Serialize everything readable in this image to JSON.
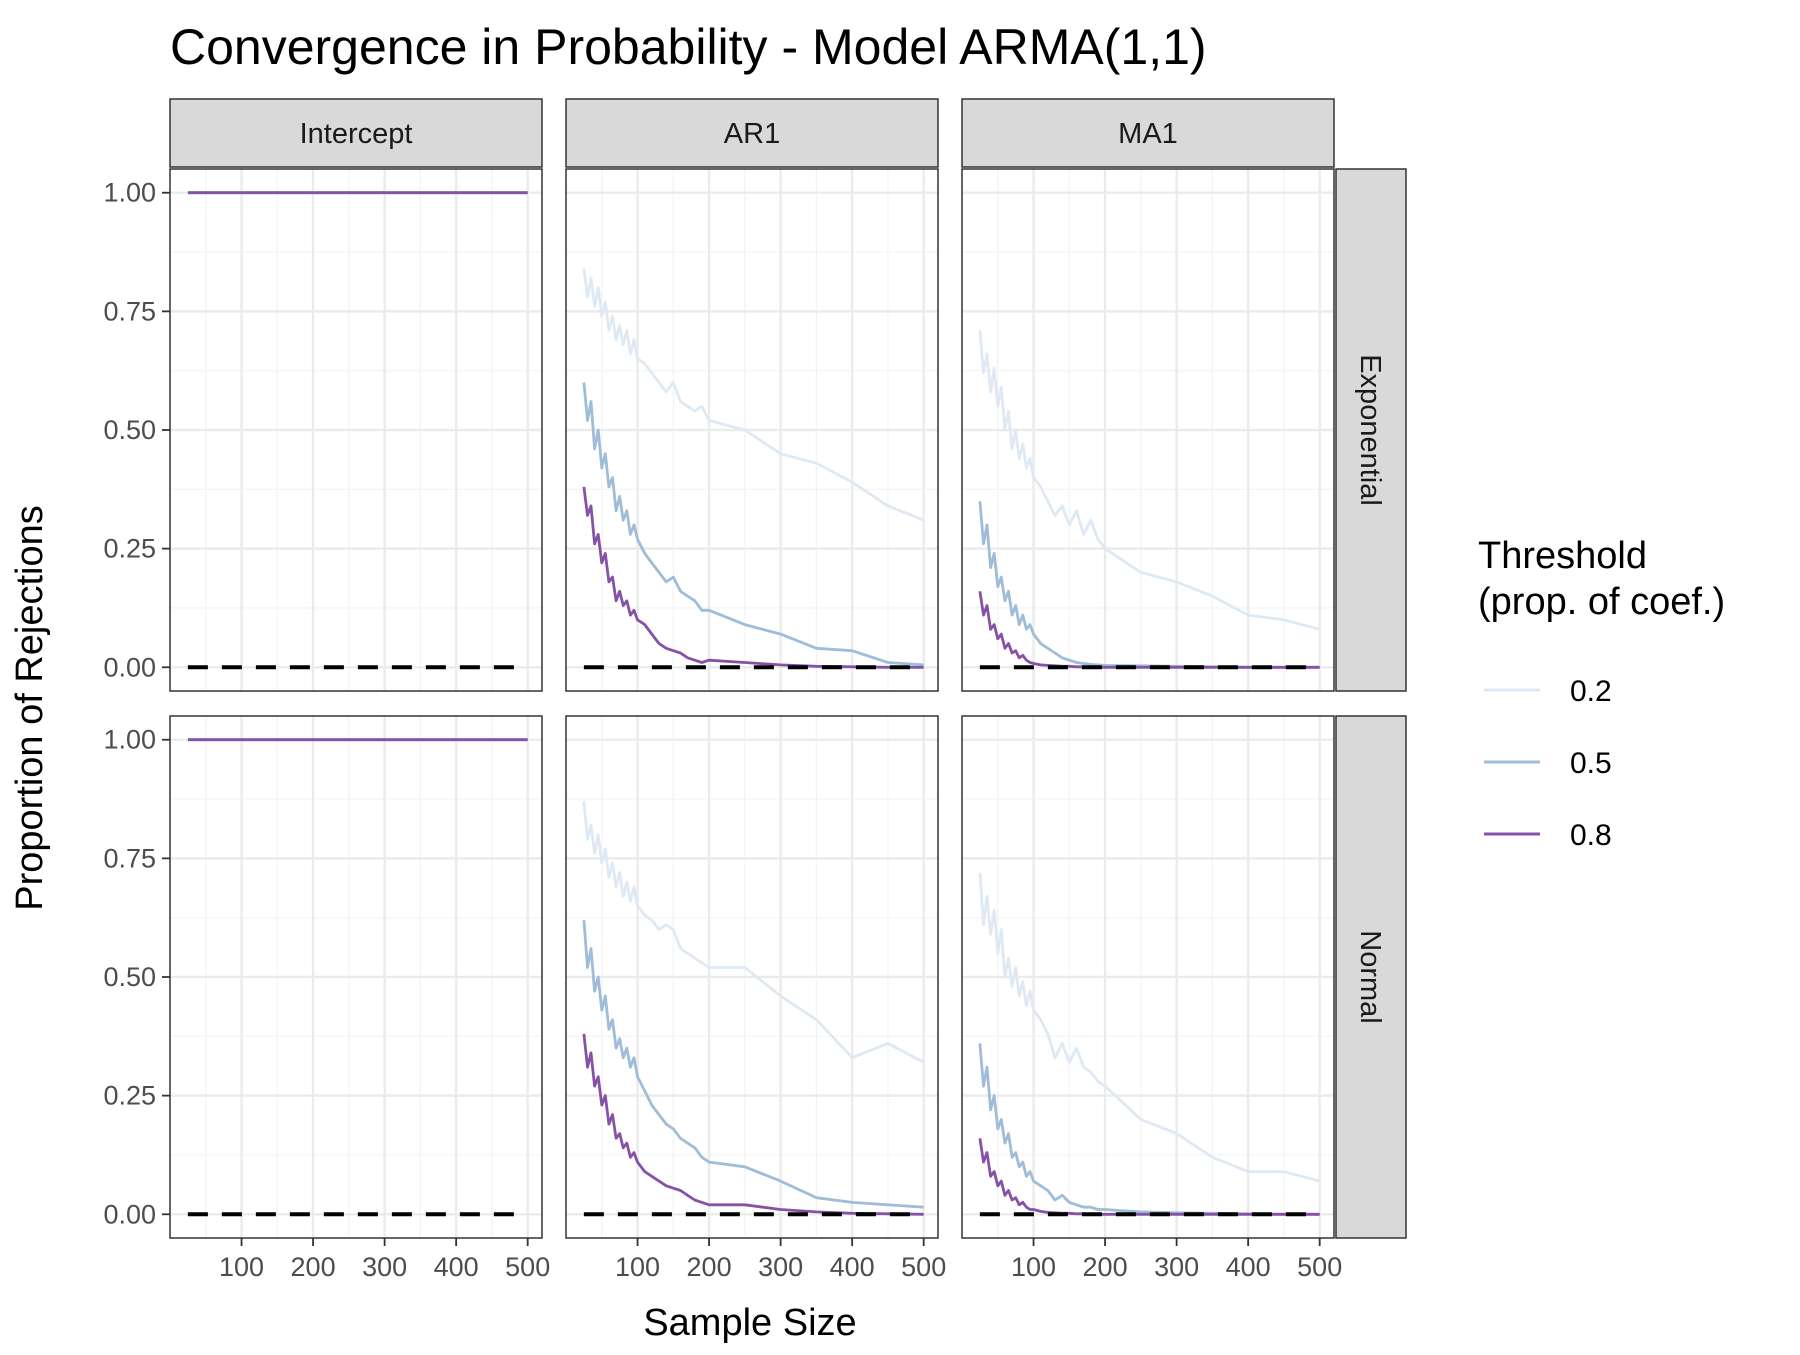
{
  "chart_data": {
    "type": "line",
    "title": "Convergence in Probability - Model ARMA(1,1)",
    "xlabel": "Sample Size",
    "ylabel": "Proportion of Rejections",
    "xlim": [
      0,
      520
    ],
    "ylim": [
      -0.05,
      1.05
    ],
    "x_ticks": [
      100,
      200,
      300,
      400,
      500
    ],
    "x_tick_labels": [
      "100",
      "200",
      "300",
      "400",
      "500"
    ],
    "y_ticks": [
      0,
      0.25,
      0.5,
      0.75,
      1.0
    ],
    "y_tick_labels": [
      "0.00",
      "0.25",
      "0.50",
      "0.75",
      "1.00"
    ],
    "grid": true,
    "reference_line": {
      "y": 0,
      "style": "dashed",
      "color": "#000000"
    },
    "columns": [
      "Intercept",
      "AR1",
      "MA1"
    ],
    "rows": [
      "Exponential",
      "Normal"
    ],
    "legend": {
      "title_lines": [
        "Threshold",
        "(prop. of coef.)"
      ],
      "position": "right",
      "entries": [
        {
          "label": "0.2",
          "color": "#dfe9f4"
        },
        {
          "label": "0.5",
          "color": "#9fbcd9"
        },
        {
          "label": "0.8",
          "color": "#8652a6"
        }
      ]
    },
    "panels": [
      {
        "column": "Intercept",
        "row": "Exponential",
        "series": [
          {
            "threshold": "0.2",
            "x": [
              25,
              500
            ],
            "y": [
              1.0,
              1.0
            ]
          },
          {
            "threshold": "0.5",
            "x": [
              25,
              500
            ],
            "y": [
              1.0,
              1.0
            ]
          },
          {
            "threshold": "0.8",
            "x": [
              25,
              500
            ],
            "y": [
              1.0,
              1.0
            ]
          }
        ]
      },
      {
        "column": "AR1",
        "row": "Exponential",
        "series": [
          {
            "threshold": "0.2",
            "x": [
              25,
              30,
              35,
              40,
              45,
              50,
              55,
              60,
              65,
              70,
              75,
              80,
              85,
              90,
              95,
              100,
              110,
              120,
              130,
              140,
              150,
              160,
              170,
              180,
              190,
              200,
              250,
              300,
              350,
              400,
              450,
              500
            ],
            "y": [
              0.84,
              0.78,
              0.82,
              0.76,
              0.8,
              0.74,
              0.77,
              0.71,
              0.74,
              0.69,
              0.72,
              0.68,
              0.71,
              0.66,
              0.69,
              0.65,
              0.64,
              0.62,
              0.6,
              0.58,
              0.6,
              0.56,
              0.55,
              0.54,
              0.55,
              0.52,
              0.5,
              0.45,
              0.43,
              0.39,
              0.34,
              0.31
            ]
          },
          {
            "threshold": "0.5",
            "x": [
              25,
              30,
              35,
              40,
              45,
              50,
              55,
              60,
              65,
              70,
              75,
              80,
              85,
              90,
              95,
              100,
              110,
              120,
              130,
              140,
              150,
              160,
              170,
              180,
              190,
              200,
              250,
              300,
              350,
              400,
              450,
              500
            ],
            "y": [
              0.6,
              0.52,
              0.56,
              0.46,
              0.5,
              0.42,
              0.45,
              0.38,
              0.4,
              0.33,
              0.36,
              0.31,
              0.33,
              0.28,
              0.3,
              0.27,
              0.24,
              0.22,
              0.2,
              0.18,
              0.19,
              0.16,
              0.15,
              0.14,
              0.12,
              0.12,
              0.09,
              0.07,
              0.04,
              0.035,
              0.01,
              0.005
            ]
          },
          {
            "threshold": "0.8",
            "x": [
              25,
              30,
              35,
              40,
              45,
              50,
              55,
              60,
              65,
              70,
              75,
              80,
              85,
              90,
              95,
              100,
              110,
              120,
              130,
              140,
              150,
              160,
              170,
              180,
              190,
              200,
              250,
              300,
              350,
              400,
              450,
              500
            ],
            "y": [
              0.38,
              0.32,
              0.34,
              0.26,
              0.28,
              0.22,
              0.24,
              0.18,
              0.19,
              0.14,
              0.16,
              0.13,
              0.14,
              0.11,
              0.12,
              0.1,
              0.09,
              0.07,
              0.05,
              0.04,
              0.035,
              0.03,
              0.02,
              0.015,
              0.01,
              0.015,
              0.01,
              0.005,
              0.002,
              0.001,
              0.0,
              0.0
            ]
          }
        ]
      },
      {
        "column": "MA1",
        "row": "Exponential",
        "series": [
          {
            "threshold": "0.2",
            "x": [
              25,
              30,
              35,
              40,
              45,
              50,
              55,
              60,
              65,
              70,
              75,
              80,
              85,
              90,
              95,
              100,
              110,
              120,
              130,
              140,
              150,
              160,
              170,
              180,
              190,
              200,
              250,
              300,
              350,
              400,
              450,
              500
            ],
            "y": [
              0.71,
              0.62,
              0.66,
              0.58,
              0.63,
              0.55,
              0.59,
              0.5,
              0.54,
              0.46,
              0.5,
              0.44,
              0.47,
              0.42,
              0.44,
              0.4,
              0.38,
              0.35,
              0.32,
              0.34,
              0.3,
              0.33,
              0.28,
              0.31,
              0.27,
              0.25,
              0.2,
              0.18,
              0.15,
              0.11,
              0.1,
              0.08
            ]
          },
          {
            "threshold": "0.5",
            "x": [
              25,
              30,
              35,
              40,
              45,
              50,
              55,
              60,
              65,
              70,
              75,
              80,
              85,
              90,
              95,
              100,
              110,
              120,
              130,
              140,
              150,
              160,
              170,
              180,
              190,
              200,
              250,
              300,
              350,
              400,
              450,
              500
            ],
            "y": [
              0.35,
              0.26,
              0.3,
              0.21,
              0.24,
              0.17,
              0.19,
              0.14,
              0.16,
              0.11,
              0.13,
              0.09,
              0.11,
              0.08,
              0.09,
              0.07,
              0.05,
              0.04,
              0.03,
              0.02,
              0.015,
              0.01,
              0.008,
              0.006,
              0.005,
              0.004,
              0.003,
              0.002,
              0.001,
              0.0,
              0.0,
              0.0
            ]
          },
          {
            "threshold": "0.8",
            "x": [
              25,
              30,
              35,
              40,
              45,
              50,
              55,
              60,
              65,
              70,
              75,
              80,
              85,
              90,
              95,
              100,
              110,
              120,
              130,
              140,
              150,
              160,
              170,
              180,
              190,
              200,
              250,
              300,
              350,
              400,
              450,
              500
            ],
            "y": [
              0.16,
              0.11,
              0.13,
              0.08,
              0.09,
              0.06,
              0.07,
              0.04,
              0.05,
              0.03,
              0.035,
              0.02,
              0.025,
              0.015,
              0.01,
              0.008,
              0.005,
              0.004,
              0.003,
              0.002,
              0.002,
              0.001,
              0.001,
              0.0,
              0.0,
              0.0,
              0.0,
              0.0,
              0.0,
              0.0,
              0.0,
              0.0
            ]
          }
        ]
      },
      {
        "column": "Intercept",
        "row": "Normal",
        "series": [
          {
            "threshold": "0.2",
            "x": [
              25,
              500
            ],
            "y": [
              1.0,
              1.0
            ]
          },
          {
            "threshold": "0.5",
            "x": [
              25,
              500
            ],
            "y": [
              1.0,
              1.0
            ]
          },
          {
            "threshold": "0.8",
            "x": [
              25,
              500
            ],
            "y": [
              1.0,
              1.0
            ]
          }
        ]
      },
      {
        "column": "AR1",
        "row": "Normal",
        "series": [
          {
            "threshold": "0.2",
            "x": [
              25,
              30,
              35,
              40,
              45,
              50,
              55,
              60,
              65,
              70,
              75,
              80,
              85,
              90,
              95,
              100,
              110,
              120,
              130,
              140,
              150,
              160,
              170,
              180,
              190,
              200,
              250,
              300,
              350,
              400,
              450,
              500
            ],
            "y": [
              0.87,
              0.79,
              0.82,
              0.76,
              0.8,
              0.74,
              0.77,
              0.71,
              0.74,
              0.69,
              0.72,
              0.67,
              0.7,
              0.66,
              0.69,
              0.65,
              0.63,
              0.62,
              0.6,
              0.61,
              0.6,
              0.56,
              0.55,
              0.54,
              0.53,
              0.52,
              0.52,
              0.46,
              0.41,
              0.33,
              0.36,
              0.32
            ]
          },
          {
            "threshold": "0.5",
            "x": [
              25,
              30,
              35,
              40,
              45,
              50,
              55,
              60,
              65,
              70,
              75,
              80,
              85,
              90,
              95,
              100,
              110,
              120,
              130,
              140,
              150,
              160,
              170,
              180,
              190,
              200,
              250,
              300,
              350,
              400,
              450,
              500
            ],
            "y": [
              0.62,
              0.52,
              0.56,
              0.47,
              0.5,
              0.43,
              0.46,
              0.39,
              0.41,
              0.35,
              0.37,
              0.33,
              0.35,
              0.31,
              0.33,
              0.29,
              0.26,
              0.23,
              0.21,
              0.19,
              0.18,
              0.16,
              0.15,
              0.14,
              0.12,
              0.11,
              0.1,
              0.07,
              0.035,
              0.025,
              0.02,
              0.015
            ]
          },
          {
            "threshold": "0.8",
            "x": [
              25,
              30,
              35,
              40,
              45,
              50,
              55,
              60,
              65,
              70,
              75,
              80,
              85,
              90,
              95,
              100,
              110,
              120,
              130,
              140,
              150,
              160,
              170,
              180,
              190,
              200,
              250,
              300,
              350,
              400,
              450,
              500
            ],
            "y": [
              0.38,
              0.31,
              0.34,
              0.27,
              0.29,
              0.23,
              0.25,
              0.19,
              0.21,
              0.16,
              0.17,
              0.14,
              0.15,
              0.12,
              0.13,
              0.11,
              0.09,
              0.08,
              0.07,
              0.06,
              0.055,
              0.05,
              0.04,
              0.03,
              0.025,
              0.02,
              0.02,
              0.01,
              0.005,
              0.002,
              0.001,
              0.0
            ]
          }
        ]
      },
      {
        "column": "MA1",
        "row": "Normal",
        "series": [
          {
            "threshold": "0.2",
            "x": [
              25,
              30,
              35,
              40,
              45,
              50,
              55,
              60,
              65,
              70,
              75,
              80,
              85,
              90,
              95,
              100,
              110,
              120,
              130,
              140,
              150,
              160,
              170,
              180,
              190,
              200,
              250,
              300,
              350,
              400,
              450,
              500
            ],
            "y": [
              0.72,
              0.61,
              0.67,
              0.59,
              0.64,
              0.55,
              0.6,
              0.5,
              0.54,
              0.48,
              0.52,
              0.46,
              0.49,
              0.44,
              0.47,
              0.43,
              0.41,
              0.38,
              0.33,
              0.36,
              0.32,
              0.35,
              0.31,
              0.3,
              0.28,
              0.27,
              0.2,
              0.17,
              0.12,
              0.09,
              0.09,
              0.07
            ]
          },
          {
            "threshold": "0.5",
            "x": [
              25,
              30,
              35,
              40,
              45,
              50,
              55,
              60,
              65,
              70,
              75,
              80,
              85,
              90,
              95,
              100,
              110,
              120,
              130,
              140,
              150,
              160,
              170,
              180,
              190,
              200,
              250,
              300,
              350,
              400,
              450,
              500
            ],
            "y": [
              0.36,
              0.27,
              0.31,
              0.22,
              0.25,
              0.18,
              0.2,
              0.15,
              0.17,
              0.12,
              0.13,
              0.1,
              0.11,
              0.08,
              0.09,
              0.07,
              0.06,
              0.05,
              0.03,
              0.04,
              0.025,
              0.02,
              0.015,
              0.015,
              0.01,
              0.01,
              0.005,
              0.003,
              0.002,
              0.001,
              0.0,
              0.0
            ]
          },
          {
            "threshold": "0.8",
            "x": [
              25,
              30,
              35,
              40,
              45,
              50,
              55,
              60,
              65,
              70,
              75,
              80,
              85,
              90,
              95,
              100,
              110,
              120,
              130,
              140,
              150,
              160,
              170,
              180,
              190,
              200,
              250,
              300,
              350,
              400,
              450,
              500
            ],
            "y": [
              0.16,
              0.11,
              0.13,
              0.08,
              0.09,
              0.06,
              0.07,
              0.04,
              0.05,
              0.03,
              0.035,
              0.02,
              0.025,
              0.015,
              0.01,
              0.01,
              0.006,
              0.004,
              0.003,
              0.002,
              0.002,
              0.001,
              0.001,
              0.0,
              0.0,
              0.0,
              0.0,
              0.0,
              0.0,
              0.0,
              0.0,
              0.0
            ]
          }
        ]
      }
    ]
  }
}
